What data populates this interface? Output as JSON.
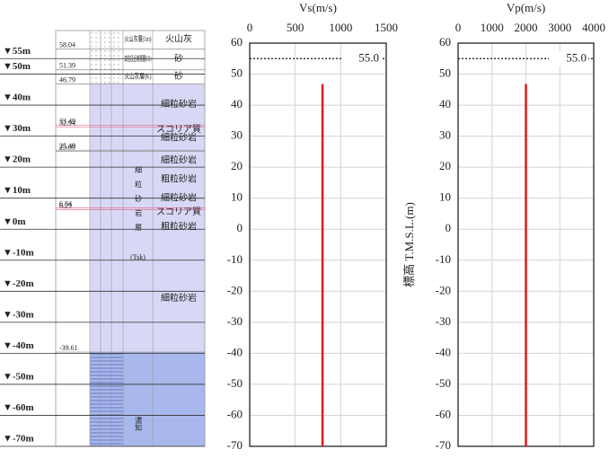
{
  "column": {
    "elevation_marks": [
      {
        "value": 55,
        "label": "▼55m"
      },
      {
        "value": 50,
        "label": "▼50m"
      },
      {
        "value": 40,
        "label": "▼40m"
      },
      {
        "value": 30,
        "label": "▼30m"
      },
      {
        "value": 20,
        "label": "▼20m"
      },
      {
        "value": 10,
        "label": "▼10m"
      },
      {
        "value": 0,
        "label": "▼0m"
      },
      {
        "value": -10,
        "label": "▼-10m"
      },
      {
        "value": -20,
        "label": "▼-20m"
      },
      {
        "value": -30,
        "label": "▼-30m"
      },
      {
        "value": -40,
        "label": "▼-40m"
      },
      {
        "value": -50,
        "label": "▼-50m"
      },
      {
        "value": -60,
        "label": "▼-60m"
      },
      {
        "value": -70,
        "label": "▼-70m"
      }
    ],
    "layers": [
      {
        "bottom": 58.04,
        "unit": "火山灰層(1m)",
        "lithology": [
          "火山灰"
        ]
      },
      {
        "bottom": 51.39,
        "unit": "高位段丘堆積層(H3)",
        "lithology": [
          "砂"
        ]
      },
      {
        "bottom": 46.79,
        "unit": "火山灰層(K)",
        "lithology": [
          "砂"
        ]
      },
      {
        "bottom": 33.49,
        "lithology": [
          "細粒砂岩"
        ]
      },
      {
        "bottom": 32.94,
        "lithology": [
          "スコリア質"
        ]
      },
      {
        "bottom": 25.49,
        "lithology": [
          "細粒砂岩"
        ]
      },
      {
        "bottom": 25.09,
        "lithology": []
      },
      {
        "bottom": 6.84,
        "lithology": [
          "細粒砂岩",
          "粗粒砂岩",
          "細粒砂岩"
        ]
      },
      {
        "bottom": 6.29,
        "lithology": [
          "スコリア質"
        ]
      },
      {
        "bottom": -39.61,
        "lithology": [
          "粗粒砂岩",
          "細粒砂岩"
        ]
      },
      {
        "unit": "濃知",
        "lithology": []
      }
    ],
    "formation": {
      "label": "細粒砂岩層",
      "code": "(Tsk)"
    }
  },
  "chart_data": [
    {
      "type": "line",
      "title": "Vs(m/s)",
      "xlim": [
        0,
        1500
      ],
      "xticks": [
        0,
        500,
        1000,
        1500
      ],
      "ylim": [
        -70,
        60
      ],
      "yticks": [
        60,
        50,
        40,
        30,
        20,
        10,
        0,
        -10,
        -20,
        -30,
        -40,
        -50,
        -60,
        -70
      ],
      "grid": true,
      "reference_line": {
        "value": 55,
        "label": "55.0"
      },
      "series": [
        {
          "color": "#e0191b",
          "x": [
            800,
            800
          ],
          "y": [
            46.79,
            -70
          ]
        }
      ]
    },
    {
      "type": "line",
      "title": "Vp(m/s)",
      "y_label": "標高 T.M.S.L.(m)",
      "xlim": [
        0,
        4000
      ],
      "xticks": [
        0,
        1000,
        2000,
        3000,
        4000
      ],
      "ylim": [
        -70,
        60
      ],
      "yticks": [
        60,
        50,
        40,
        30,
        20,
        10,
        0,
        -10,
        -20,
        -30,
        -40,
        -50,
        -60,
        -70
      ],
      "grid": true,
      "reference_line": {
        "value": 55,
        "label": "55.0"
      },
      "series": [
        {
          "color": "#e0191b",
          "x": [
            2000,
            2000
          ],
          "y": [
            46.79,
            -70
          ]
        }
      ]
    }
  ]
}
